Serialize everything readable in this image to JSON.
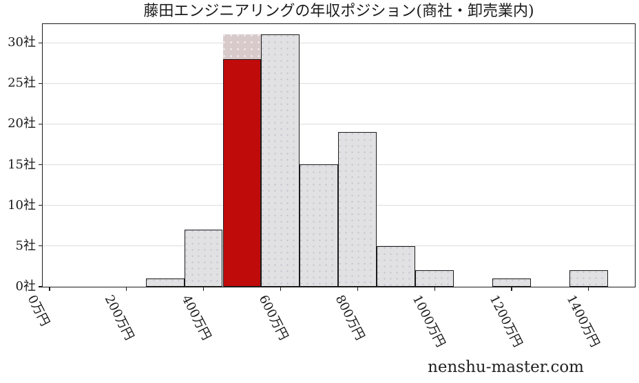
{
  "watermark": {
    "text": "nenshu-master.com"
  },
  "chart_data": {
    "type": "bar",
    "title": "藤田エンジニアリングの年収ポジション(商社・卸売業内)",
    "xlabel": "",
    "ylabel": "",
    "x_unit": "万円",
    "y_unit": "社",
    "xlim": [
      -18,
      1520
    ],
    "ylim": [
      0,
      32.3
    ],
    "grid": true,
    "legend": "none",
    "grid_values": [
      5,
      10,
      15,
      20,
      25,
      30
    ],
    "x_ticks": [
      {
        "value": 0,
        "label": "0万円"
      },
      {
        "value": 200,
        "label": "200万円"
      },
      {
        "value": 400,
        "label": "400万円"
      },
      {
        "value": 600,
        "label": "600万円"
      },
      {
        "value": 800,
        "label": "800万円"
      },
      {
        "value": 1000,
        "label": "1000万円"
      },
      {
        "value": 1200,
        "label": "1200万円"
      },
      {
        "value": 1400,
        "label": "1400万円"
      }
    ],
    "y_ticks": [
      {
        "value": 0,
        "label": "0社"
      },
      {
        "value": 5,
        "label": "5社"
      },
      {
        "value": 10,
        "label": "10社"
      },
      {
        "value": 15,
        "label": "15社"
      },
      {
        "value": 20,
        "label": "20社"
      },
      {
        "value": 25,
        "label": "25社"
      },
      {
        "value": 30,
        "label": "30社"
      }
    ],
    "bars": [
      {
        "range": "250-350man",
        "x0": 250,
        "x1": 350,
        "count": 1,
        "type": "normal"
      },
      {
        "range": "350-450man",
        "x0": 350,
        "x1": 450,
        "count": 7,
        "type": "normal"
      },
      {
        "range": "450-550man",
        "x0": 450,
        "x1": 550,
        "count": 31,
        "type": "highlight",
        "highlight_count": 28
      },
      {
        "range": "550-650man",
        "x0": 550,
        "x1": 650,
        "count": 31,
        "type": "normal"
      },
      {
        "range": "650-750man",
        "x0": 650,
        "x1": 750,
        "count": 15,
        "type": "normal"
      },
      {
        "range": "750-850man",
        "x0": 750,
        "x1": 850,
        "count": 19,
        "type": "normal"
      },
      {
        "range": "850-950man",
        "x0": 850,
        "x1": 950,
        "count": 5,
        "type": "normal"
      },
      {
        "range": "950-1050man",
        "x0": 950,
        "x1": 1050,
        "count": 2,
        "type": "normal"
      },
      {
        "range": "1150-1250man",
        "x0": 1150,
        "x1": 1250,
        "count": 1,
        "type": "normal"
      },
      {
        "range": "1350-1450man",
        "x0": 1350,
        "x1": 1450,
        "count": 2,
        "type": "normal"
      }
    ],
    "highlight": {
      "range": "450-550man",
      "company_value": 28,
      "bin_total": 31
    },
    "colors": {
      "bar_fill": "#e1e1e4",
      "bar_edge": "#1a1a1a",
      "highlight_fill": "#c00b0b",
      "highlight_top_fill": "#d8caca",
      "grid_color": "#dcdcdc"
    }
  }
}
